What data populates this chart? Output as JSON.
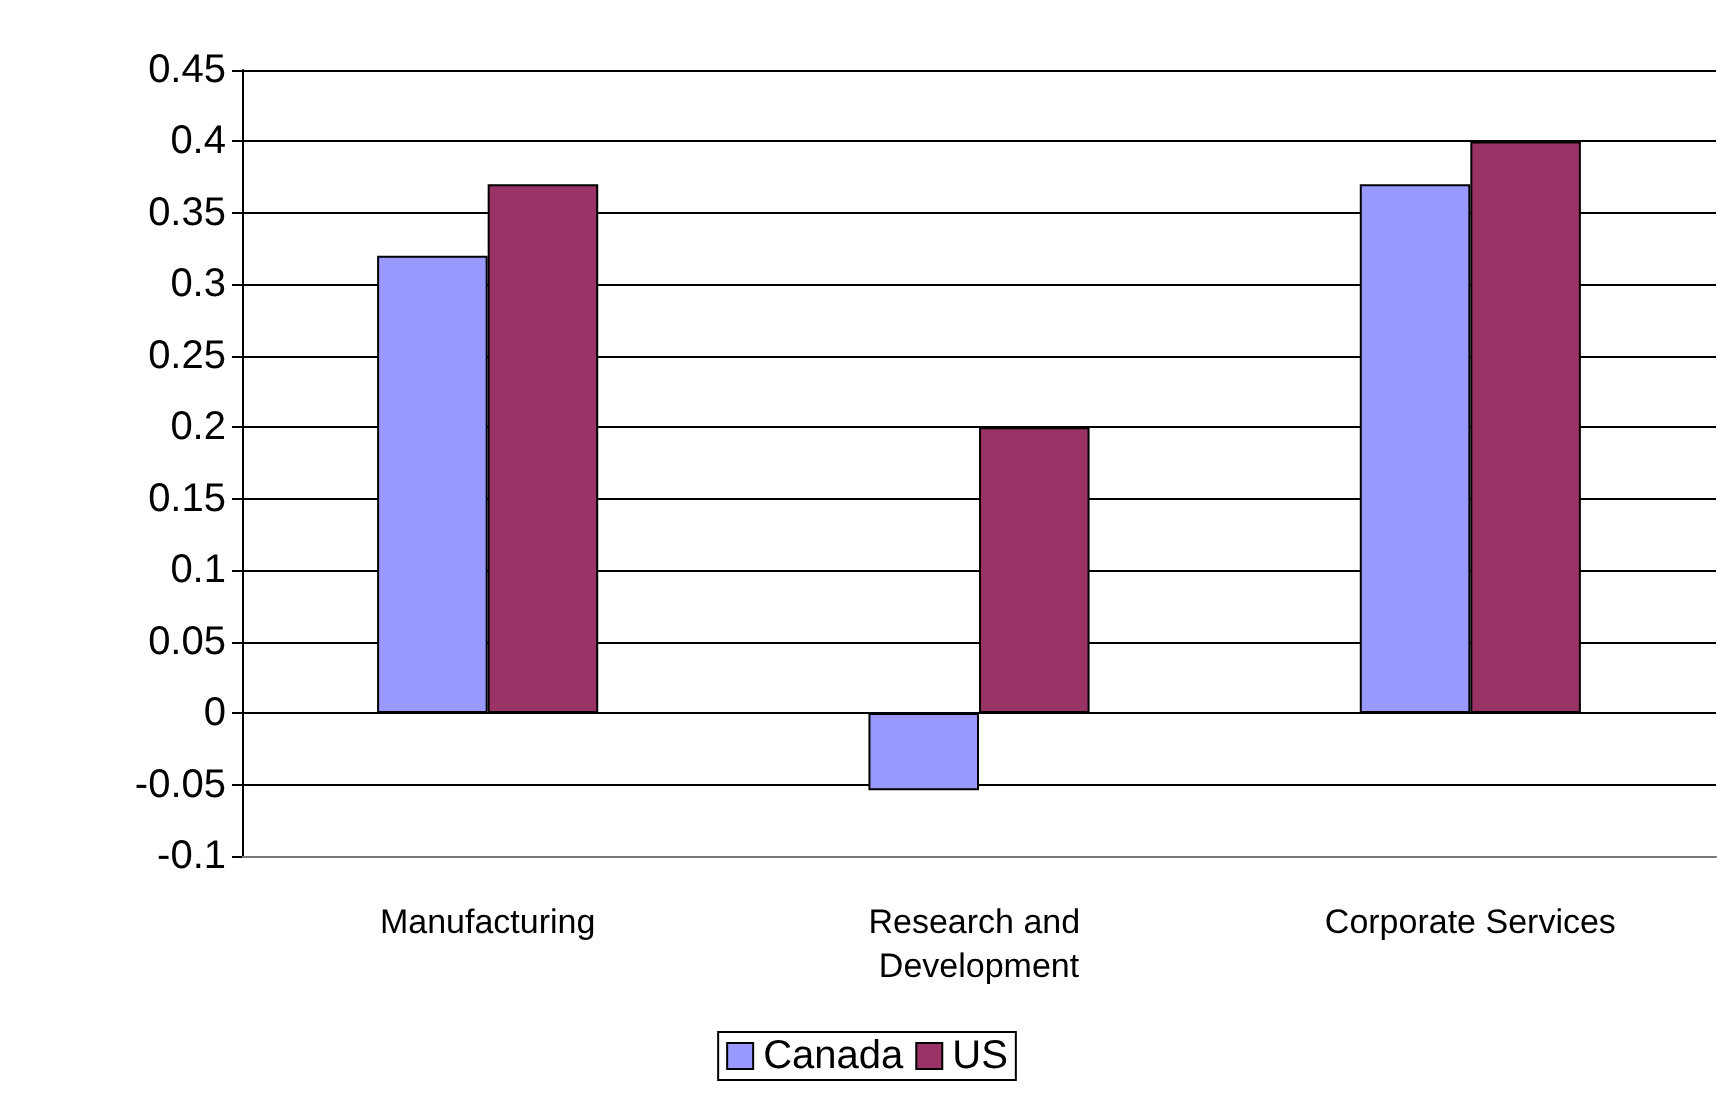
{
  "chart_data": {
    "type": "bar",
    "categories": [
      "Manufacturing",
      "Research and Development",
      "Corporate Services"
    ],
    "series": [
      {
        "name": "Canada",
        "color": "#9999ff",
        "values": [
          0.32,
          -0.054,
          0.37
        ]
      },
      {
        "name": "US",
        "color": "#993366",
        "values": [
          0.37,
          0.2,
          0.4
        ]
      }
    ],
    "ylim": [
      -0.1,
      0.45
    ],
    "yticks": [
      -0.1,
      -0.05,
      0,
      0.05,
      0.1,
      0.15,
      0.2,
      0.25,
      0.3,
      0.35,
      0.4,
      0.45
    ],
    "grid": "y",
    "legend": "bottom"
  }
}
